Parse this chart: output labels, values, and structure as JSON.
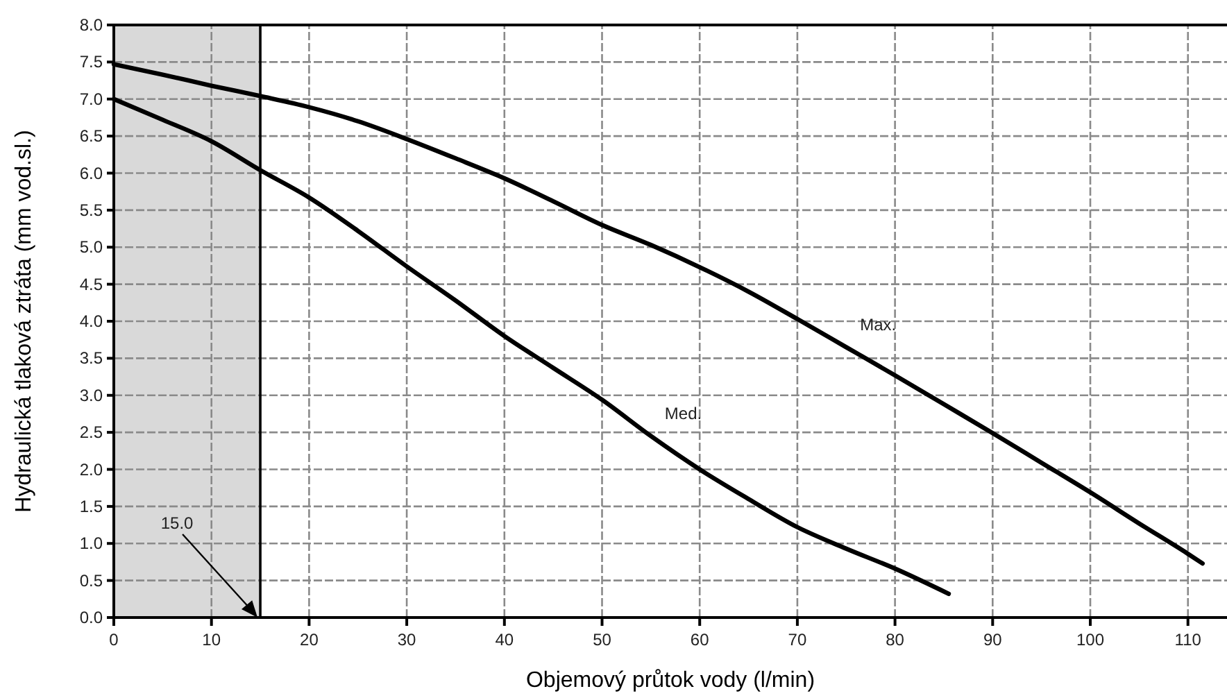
{
  "chart_data": {
    "type": "line",
    "xlabel": "Objemový průtok vody (l/min)",
    "ylabel": "Hydraulická tlaková ztráta (mm vod.sl.)",
    "xlim": [
      0,
      114
    ],
    "ylim": [
      0,
      8
    ],
    "xticks": [
      0,
      10,
      20,
      30,
      40,
      50,
      60,
      70,
      80,
      90,
      100,
      110
    ],
    "yticks": [
      {
        "value": 0,
        "label": "0.0"
      },
      {
        "value": 0.5,
        "label": "0.5"
      },
      {
        "value": 1,
        "label": "1.0"
      },
      {
        "value": 1.5,
        "label": "1.5"
      },
      {
        "value": 2,
        "label": "2.0"
      },
      {
        "value": 2.5,
        "label": "2.5"
      },
      {
        "value": 3,
        "label": "3.0"
      },
      {
        "value": 3.5,
        "label": "3.5"
      },
      {
        "value": 4,
        "label": "4.0"
      },
      {
        "value": 4.5,
        "label": "4.5"
      },
      {
        "value": 5,
        "label": "5.0"
      },
      {
        "value": 5.5,
        "label": "5.5"
      },
      {
        "value": 6,
        "label": "6.0"
      },
      {
        "value": 6.5,
        "label": "6.5"
      },
      {
        "value": 7,
        "label": "7.0"
      },
      {
        "value": 7.5,
        "label": "7.5"
      },
      {
        "value": 8,
        "label": "8.0"
      }
    ],
    "grid": true,
    "marker": "none",
    "line_style": "solid",
    "series": [
      {
        "name": "Max.",
        "color": "#000000",
        "x": [
          0,
          5,
          10,
          15,
          20,
          25,
          30,
          35,
          40,
          45,
          50,
          55,
          60,
          65,
          70,
          75,
          80,
          85,
          90,
          95,
          100,
          105,
          110,
          111.5
        ],
        "values": [
          7.47,
          7.33,
          7.18,
          7.04,
          6.89,
          6.7,
          6.46,
          6.2,
          5.93,
          5.62,
          5.3,
          5.03,
          4.73,
          4.4,
          4.03,
          3.65,
          3.27,
          2.88,
          2.49,
          2.09,
          1.69,
          1.27,
          0.86,
          0.73
        ]
      },
      {
        "name": "Med.",
        "color": "#000000",
        "x": [
          0,
          5,
          10,
          15,
          20,
          25,
          30,
          35,
          40,
          45,
          50,
          55,
          60,
          65,
          70,
          75,
          80,
          85.5
        ],
        "values": [
          7.0,
          6.72,
          6.43,
          6.04,
          5.67,
          5.22,
          4.74,
          4.28,
          3.8,
          3.37,
          2.94,
          2.45,
          2.0,
          1.6,
          1.22,
          0.93,
          0.66,
          0.32
        ]
      }
    ],
    "bands": [
      {
        "axis": "x",
        "from": 0,
        "to": 15,
        "color": "#d9d9d9"
      }
    ],
    "ref_lines": [
      {
        "axis": "x",
        "value": 15,
        "label": "15.0",
        "color": "#000000",
        "line_style": "solid"
      }
    ]
  }
}
